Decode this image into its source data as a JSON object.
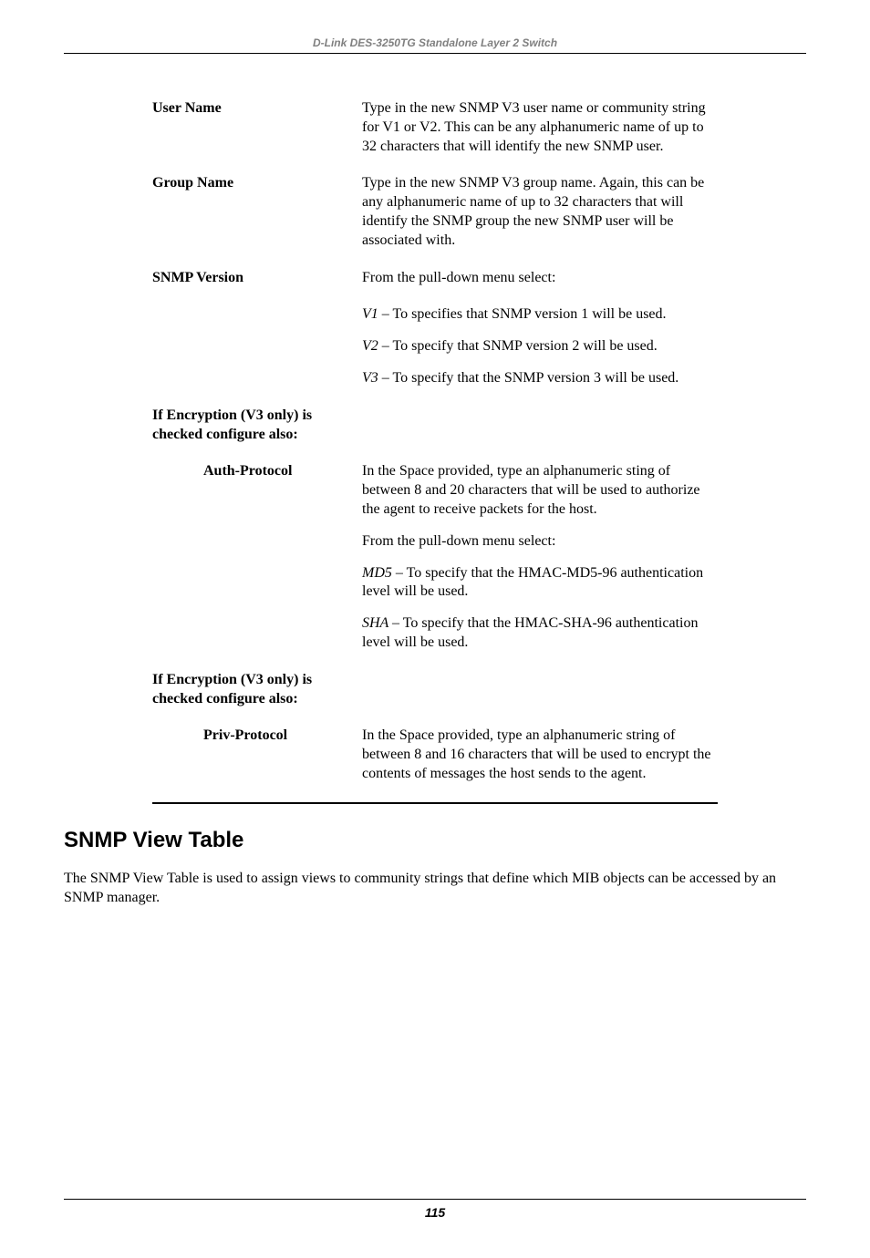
{
  "header": {
    "title": "D-Link DES-3250TG Standalone Layer 2 Switch"
  },
  "params": {
    "user_name": {
      "label": "User Name",
      "desc": "Type in the new SNMP V3 user name or community string for V1 or V2. This can be any alphanumeric name of up to 32 characters that will identify the new SNMP user."
    },
    "group_name": {
      "label": "Group Name",
      "desc": "Type in the new SNMP V3 group name. Again, this can be any alphanumeric name of up to 32 characters that will identify the SNMP group the new SNMP user will be associated with."
    },
    "snmp_version": {
      "label": "SNMP Version",
      "lead": "From the pull-down menu select:",
      "v1_prefix": "V1",
      "v1_rest": " – To specifies that SNMP version 1 will be used.",
      "v2_prefix": "V2",
      "v2_rest": " – To specify that SNMP version 2 will be used.",
      "v3_prefix": "V3",
      "v3_rest": " – To specify that the SNMP version 3 will be used."
    },
    "enc_note1": "If Encryption (V3 only) is checked configure also:",
    "auth_protocol": {
      "label": "Auth-Protocol",
      "para1": "In the Space provided, type an alphanumeric sting of between 8 and 20 characters that will be used to authorize the agent to receive packets for the host.",
      "para2": "From the pull-down menu select:",
      "md5_prefix": "MD5 ",
      "md5_rest": "– To specify that the HMAC-MD5-96 authentication level will be used.",
      "sha_prefix": "SHA ",
      "sha_rest": "– To specify that the HMAC-SHA-96 authentication level will be used."
    },
    "enc_note2": "If Encryption (V3 only) is checked configure also:",
    "priv_protocol": {
      "label": "Priv-Protocol",
      "desc": "In the Space provided, type an alphanumeric string of between 8 and 16 characters that will be used to encrypt the contents of messages the host sends to the agent."
    }
  },
  "section": {
    "heading": "SNMP View Table",
    "body": "The SNMP View Table is used to assign views to community strings that define which MIB objects can be accessed by an SNMP manager."
  },
  "footer": {
    "page": "115"
  }
}
